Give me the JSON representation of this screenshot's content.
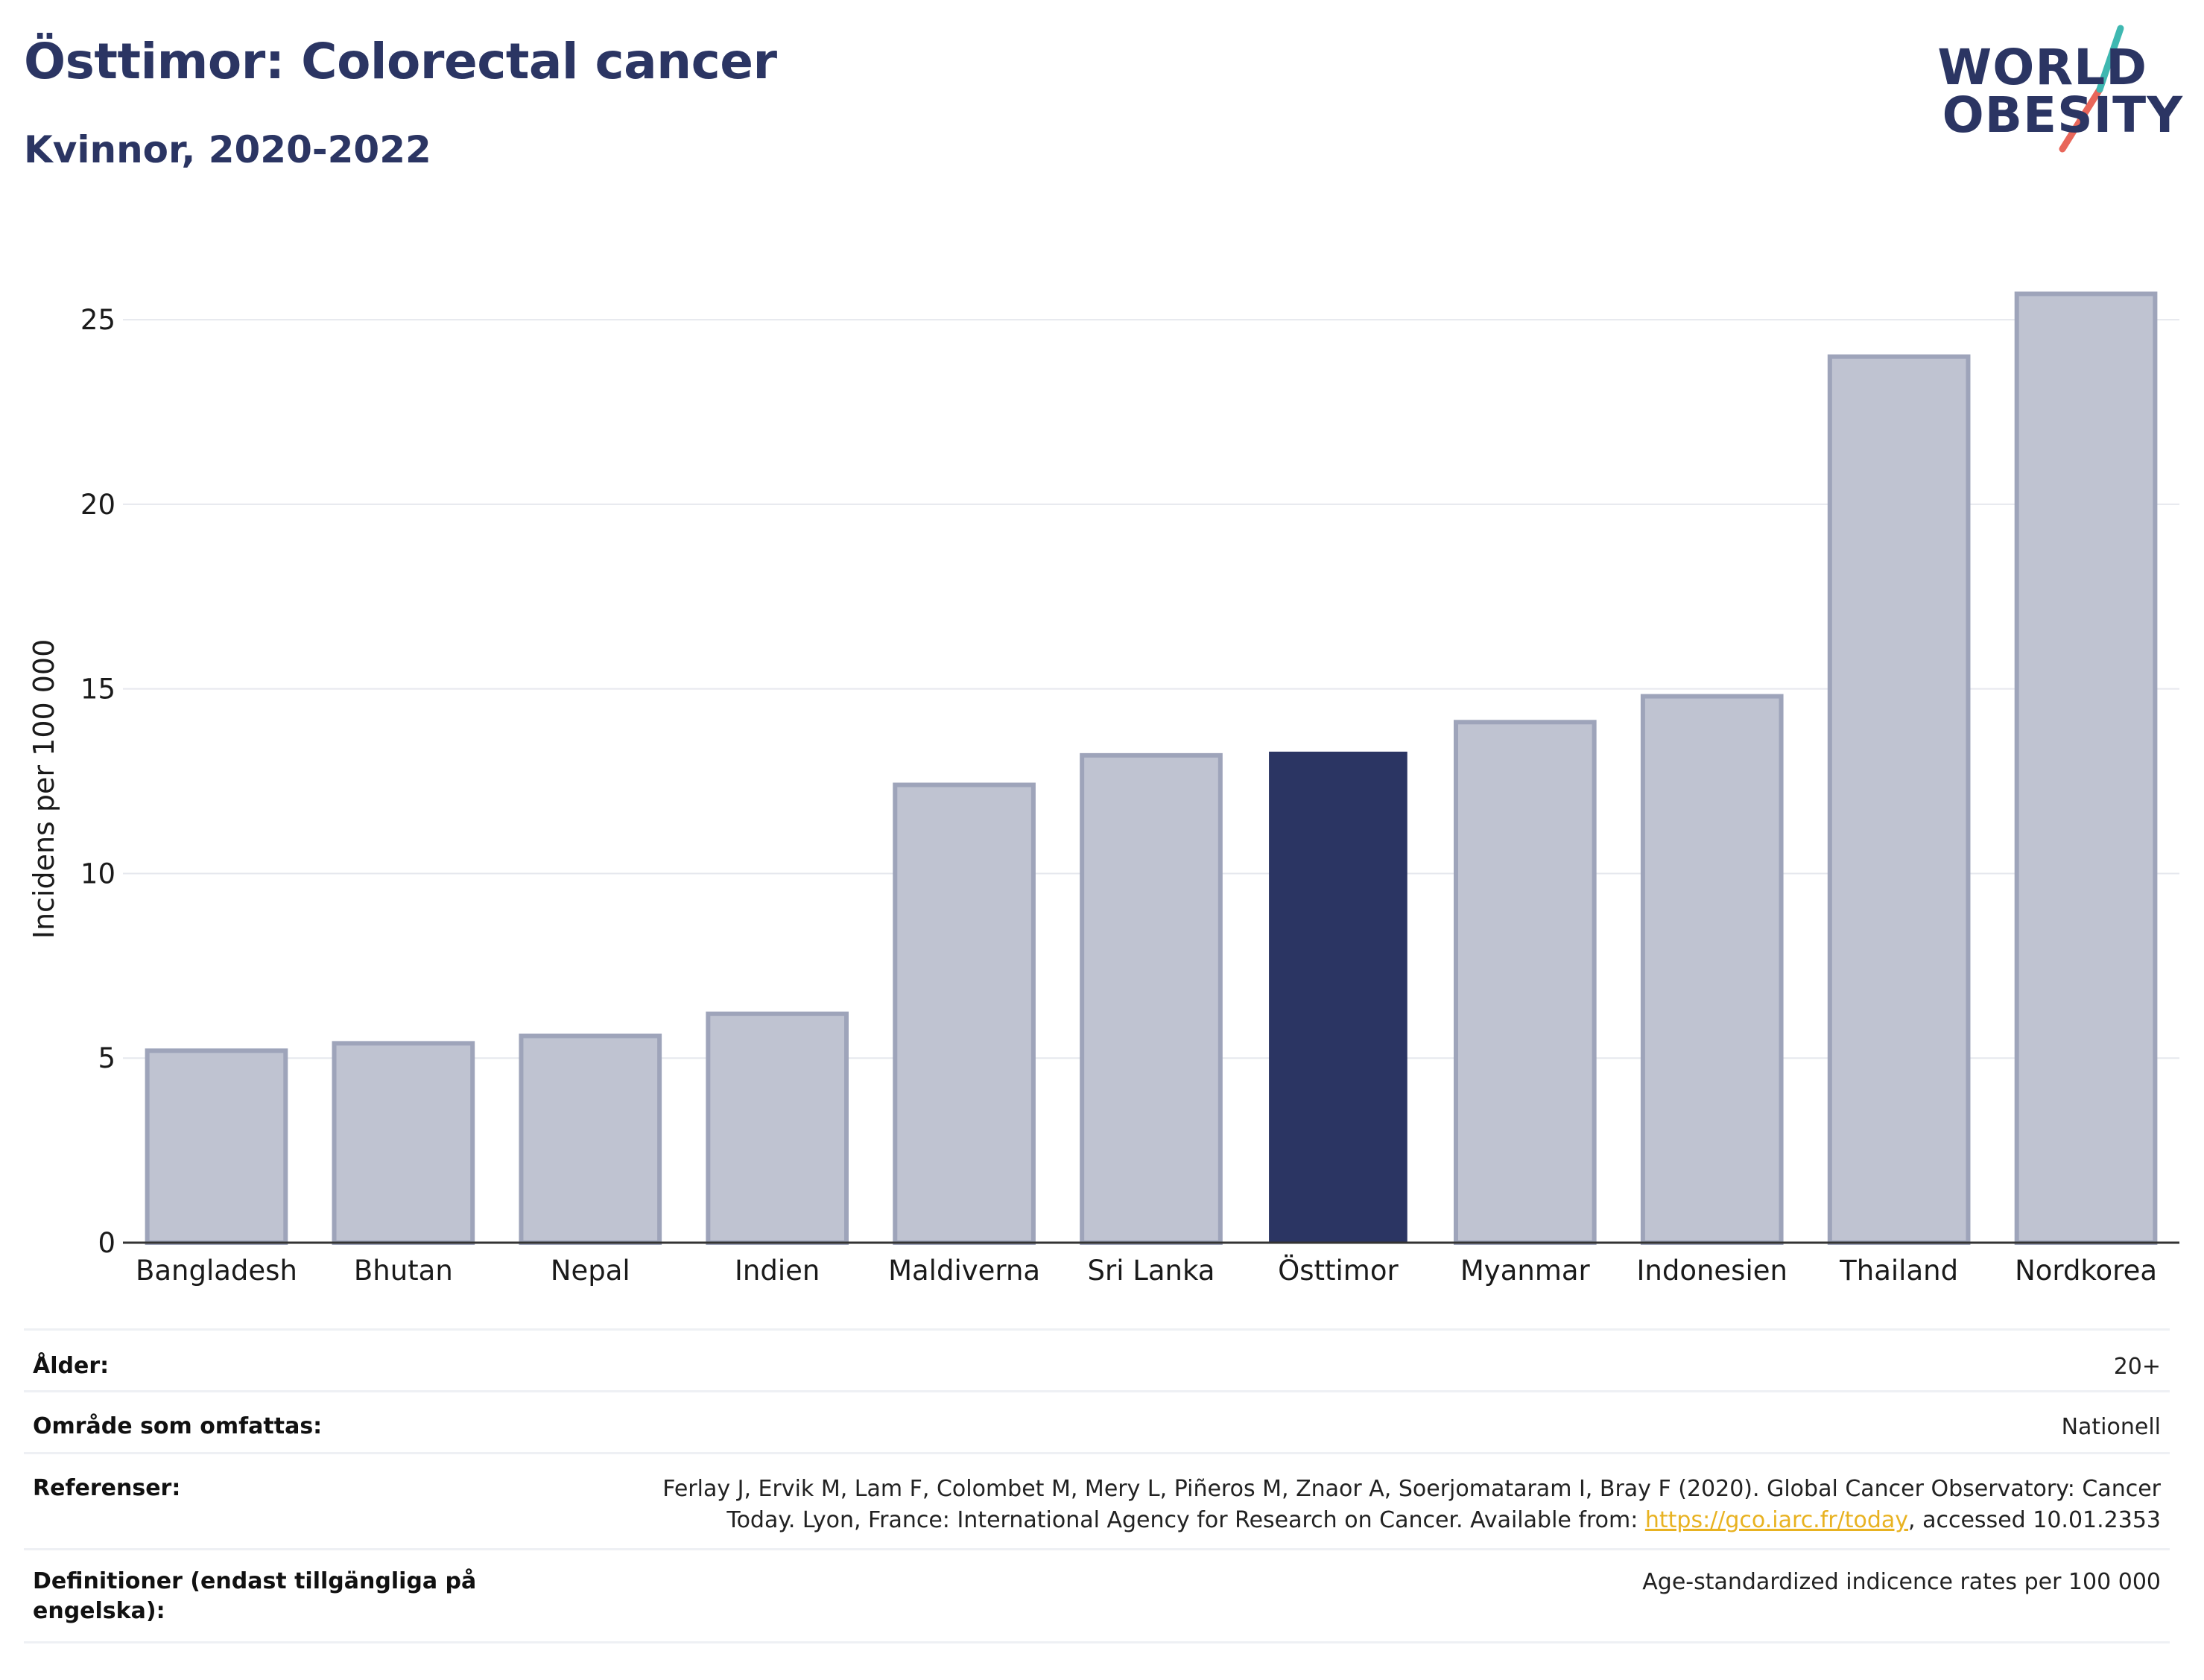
{
  "header": {
    "title": "Östtimor: Colorectal cancer",
    "subtitle": "Kvinnor, 2020-2022"
  },
  "logo": {
    "line1": "WORLD",
    "line2": "OBESITY",
    "colors": {
      "text": "#2b3563",
      "slash_top": "#3fb8b1",
      "slash_bottom": "#e8665a"
    }
  },
  "chart_data": {
    "type": "bar",
    "categories": [
      "Bangladesh",
      "Bhutan",
      "Nepal",
      "Indien",
      "Maldiverna",
      "Sri Lanka",
      "Östtimor",
      "Myanmar",
      "Indonesien",
      "Thailand",
      "Nordkorea"
    ],
    "values": [
      5.2,
      5.4,
      5.6,
      6.2,
      12.4,
      13.2,
      13.3,
      14.1,
      14.8,
      24.0,
      25.7
    ],
    "highlight": "Östtimor",
    "ylabel": "Incidens per 100 000",
    "xlabel": "",
    "ylim": [
      0,
      27
    ],
    "yticks": [
      0,
      5,
      10,
      15,
      20,
      25
    ],
    "grid": true,
    "colors": {
      "bar": "#bfc3d1",
      "bar_border": "#9ea4ba",
      "highlight": "#2b3563",
      "grid": "#e6e8ee",
      "axis": "#333333"
    }
  },
  "info": {
    "age_label": "Ålder:",
    "age_value": "20+",
    "area_label": "Område som omfattas:",
    "area_value": "Nationell",
    "refs_label": "Referenser:",
    "refs_text_1": "Ferlay J, Ervik M, Lam F, Colombet M, Mery L, Piñeros M, Znaor A, Soerjomataram I, Bray F (2020). Global Cancer Observatory: Cancer",
    "refs_text_2": "Today. Lyon, France: International Agency for Research on Cancer. Available from: ",
    "refs_link": "https://gco.iarc.fr/today",
    "refs_text_3": ", accessed 10.01.2353",
    "defs_label_1": "Definitioner (endast tillgängliga på",
    "defs_label_2": "engelska):",
    "defs_value": "Age-standardized indicence rates per 100 000"
  }
}
